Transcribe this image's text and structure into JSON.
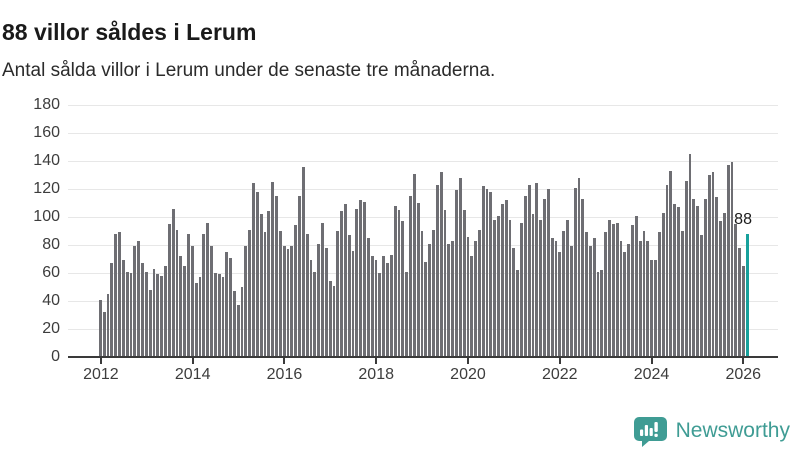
{
  "header": {
    "title": "88 villor såldes i Lerum",
    "subtitle": "Antal sålda villor i Lerum under de senaste tre månaderna."
  },
  "annotation": {
    "value_label": "88"
  },
  "footer": {
    "brand": "Newsworthy",
    "icon": "newsworthy-speech-bubble-chart-icon"
  },
  "colors": {
    "bar": "#6e6e73",
    "highlight": "#18a19c",
    "brand_teal": "#3f9c94",
    "grid": "#e7e7e7",
    "axis": "#3a3a3a",
    "title_text": "#1a1a1a",
    "tick_text": "#3d3d3d"
  },
  "chart_data": {
    "type": "bar",
    "title": "88 villor såldes i Lerum",
    "subtitle": "Antal sålda villor i Lerum under de senaste tre månaderna.",
    "x_unit": "month",
    "x_start": "2012-01",
    "x_end": "2026-02",
    "x_tick_labels": [
      "2012",
      "2014",
      "2016",
      "2018",
      "2020",
      "2022",
      "2024",
      "2026"
    ],
    "months_per_x_tick": 24,
    "y_ticks": [
      0,
      20,
      40,
      60,
      80,
      100,
      120,
      140,
      160,
      180
    ],
    "ylim": [
      0,
      180
    ],
    "grid": "horizontal",
    "legend": "none",
    "bar_color": "#6e6e73",
    "highlight_color": "#18a19c",
    "highlight_index": "last",
    "highlight_value": 88,
    "values": [
      41,
      32,
      45,
      67,
      88,
      89,
      69,
      61,
      60,
      79,
      83,
      67,
      61,
      48,
      63,
      59,
      58,
      65,
      95,
      106,
      91,
      72,
      65,
      88,
      79,
      53,
      57,
      88,
      96,
      79,
      60,
      59,
      57,
      75,
      71,
      47,
      37,
      50,
      79,
      91,
      124,
      118,
      102,
      89,
      104,
      125,
      115,
      90,
      79,
      77,
      79,
      94,
      115,
      136,
      88,
      69,
      61,
      81,
      96,
      78,
      54,
      51,
      90,
      104,
      109,
      87,
      76,
      106,
      112,
      111,
      85,
      72,
      69,
      60,
      72,
      67,
      73,
      108,
      105,
      97,
      61,
      115,
      131,
      110,
      90,
      68,
      81,
      91,
      123,
      132,
      105,
      81,
      83,
      119,
      128,
      105,
      86,
      72,
      83,
      91,
      122,
      120,
      118,
      98,
      101,
      109,
      112,
      98,
      78,
      62,
      96,
      115,
      123,
      102,
      124,
      98,
      113,
      120,
      85,
      83,
      75,
      90,
      98,
      79,
      121,
      128,
      113,
      89,
      79,
      85,
      61,
      62,
      89,
      98,
      95,
      96,
      83,
      75,
      81,
      94,
      101,
      83,
      90,
      83,
      69,
      69,
      89,
      103,
      123,
      133,
      109,
      107,
      90,
      126,
      145,
      113,
      108,
      87,
      113,
      130,
      132,
      114,
      97,
      103,
      137,
      139,
      95,
      78,
      65,
      88
    ]
  }
}
